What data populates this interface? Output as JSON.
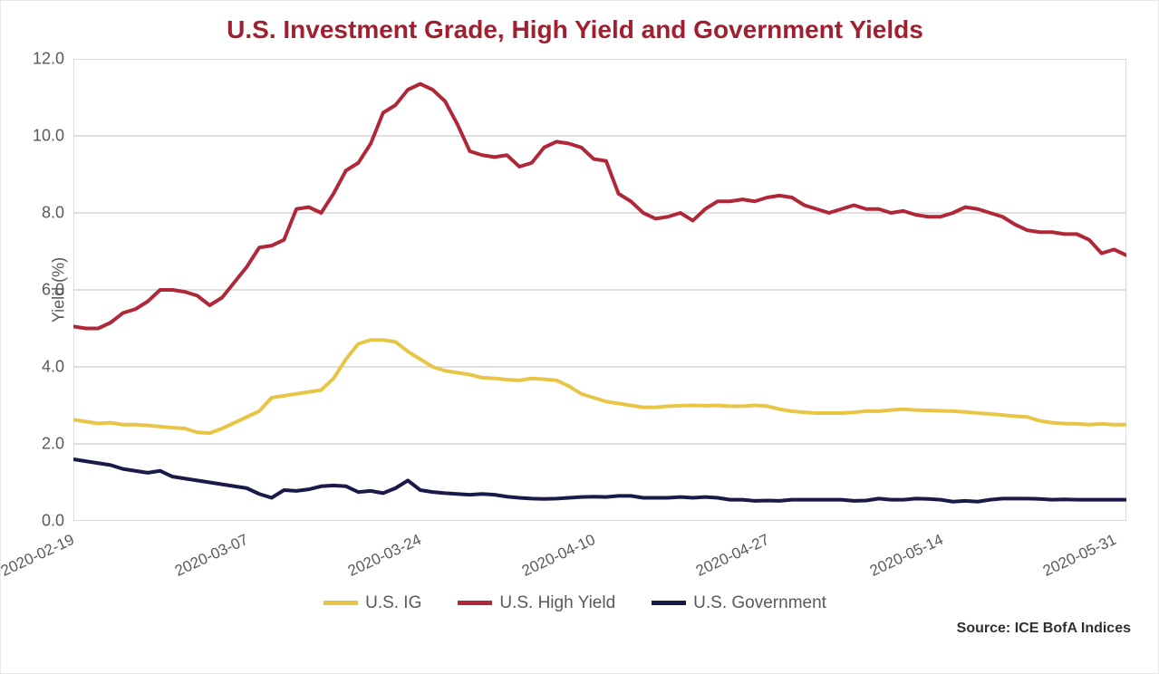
{
  "chart": {
    "type": "line",
    "title": "U.S. Investment Grade, High Yield and Government Yields",
    "y_axis_label": "Yield (%)",
    "source": "Source: ICE BofA Indices",
    "background_color": "#ffffff",
    "grid_color": "#bfbfbf",
    "axis_color": "#bfbfbf",
    "title_color": "#a02030",
    "text_color": "#595959",
    "title_fontsize": 28,
    "label_fontsize": 18,
    "tick_fontsize": 17,
    "line_width": 4,
    "ylim": [
      0,
      12
    ],
    "ytick_step": 2,
    "yticks": [
      "0.0",
      "2.0",
      "4.0",
      "6.0",
      "8.0",
      "10.0",
      "12.0"
    ],
    "xticks": [
      "2020-02-19",
      "2020-03-07",
      "2020-03-24",
      "2020-04-10",
      "2020-04-27",
      "2020-05-14",
      "2020-05-31"
    ],
    "xtick_positions": [
      0,
      0.165,
      0.33,
      0.495,
      0.66,
      0.825,
      0.99
    ],
    "series": [
      {
        "name": "U.S. IG",
        "color": "#e8c547",
        "data": [
          2.63,
          2.58,
          2.53,
          2.55,
          2.5,
          2.5,
          2.48,
          2.45,
          2.42,
          2.4,
          2.3,
          2.28,
          2.4,
          2.55,
          2.7,
          2.85,
          3.2,
          3.25,
          3.3,
          3.35,
          3.4,
          3.7,
          4.2,
          4.6,
          4.7,
          4.7,
          4.65,
          4.4,
          4.2,
          4.0,
          3.9,
          3.85,
          3.8,
          3.72,
          3.7,
          3.67,
          3.65,
          3.7,
          3.68,
          3.65,
          3.5,
          3.3,
          3.2,
          3.1,
          3.05,
          3.0,
          2.95,
          2.95,
          2.98,
          2.99,
          3.0,
          2.99,
          3.0,
          2.98,
          2.98,
          3.0,
          2.98,
          2.9,
          2.85,
          2.82,
          2.8,
          2.8,
          2.8,
          2.82,
          2.85,
          2.85,
          2.88,
          2.9,
          2.88,
          2.87,
          2.86,
          2.85,
          2.83,
          2.8,
          2.78,
          2.75,
          2.72,
          2.7,
          2.6,
          2.55,
          2.53,
          2.52,
          2.5,
          2.52,
          2.5,
          2.5
        ]
      },
      {
        "name": "U.S. High Yield",
        "color": "#b02838",
        "data": [
          5.05,
          5.0,
          5.0,
          5.15,
          5.4,
          5.5,
          5.7,
          6.0,
          6.0,
          5.95,
          5.85,
          5.6,
          5.8,
          6.2,
          6.6,
          7.1,
          7.15,
          7.3,
          8.1,
          8.15,
          8.0,
          8.5,
          9.1,
          9.3,
          9.8,
          10.6,
          10.8,
          11.2,
          11.35,
          11.2,
          10.9,
          10.3,
          9.6,
          9.5,
          9.45,
          9.5,
          9.2,
          9.3,
          9.7,
          9.85,
          9.8,
          9.7,
          9.4,
          9.35,
          8.5,
          8.3,
          8.0,
          7.85,
          7.9,
          8.0,
          7.8,
          8.1,
          8.3,
          8.3,
          8.35,
          8.3,
          8.4,
          8.45,
          8.4,
          8.2,
          8.1,
          8.0,
          8.1,
          8.2,
          8.1,
          8.1,
          8.0,
          8.05,
          7.95,
          7.9,
          7.9,
          8.0,
          8.15,
          8.1,
          8.0,
          7.9,
          7.7,
          7.55,
          7.5,
          7.5,
          7.45,
          7.45,
          7.3,
          6.95,
          7.05,
          6.9
        ]
      },
      {
        "name": "U.S. Government",
        "color": "#1a1a4a",
        "data": [
          1.6,
          1.55,
          1.5,
          1.45,
          1.35,
          1.3,
          1.25,
          1.3,
          1.15,
          1.1,
          1.05,
          1.0,
          0.95,
          0.9,
          0.85,
          0.7,
          0.6,
          0.8,
          0.78,
          0.82,
          0.9,
          0.92,
          0.9,
          0.75,
          0.78,
          0.72,
          0.85,
          1.05,
          0.8,
          0.75,
          0.72,
          0.7,
          0.68,
          0.7,
          0.68,
          0.63,
          0.6,
          0.58,
          0.57,
          0.58,
          0.6,
          0.62,
          0.63,
          0.62,
          0.65,
          0.65,
          0.6,
          0.6,
          0.6,
          0.62,
          0.6,
          0.62,
          0.6,
          0.55,
          0.55,
          0.52,
          0.53,
          0.52,
          0.55,
          0.55,
          0.55,
          0.55,
          0.55,
          0.52,
          0.53,
          0.58,
          0.55,
          0.55,
          0.58,
          0.57,
          0.55,
          0.5,
          0.52,
          0.5,
          0.55,
          0.58,
          0.58,
          0.58,
          0.57,
          0.55,
          0.56,
          0.55,
          0.55,
          0.55,
          0.55,
          0.55
        ]
      }
    ]
  }
}
